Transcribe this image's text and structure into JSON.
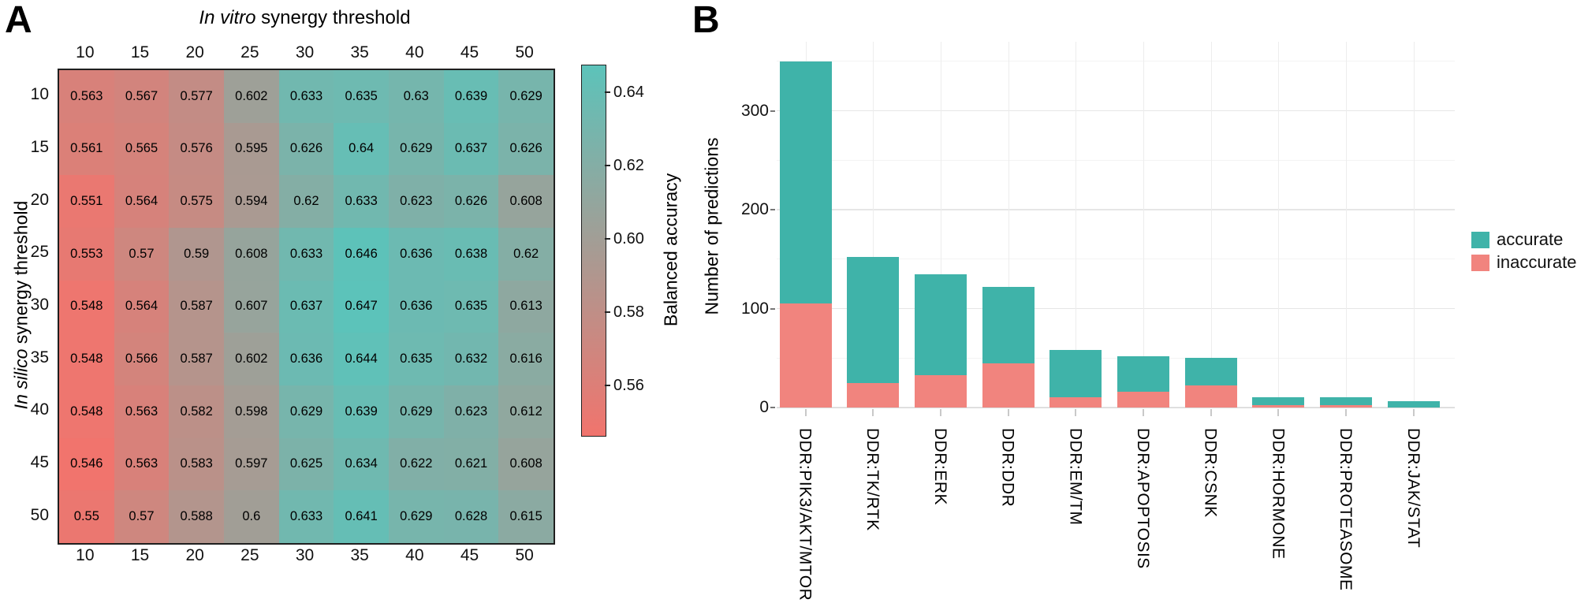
{
  "panel_a": {
    "label": "A"
  },
  "panel_b": {
    "label": "B"
  },
  "chart_data": [
    {
      "type": "heatmap",
      "panel": "A",
      "title_italic": "In vitro",
      "title_rest": " synergy threshold",
      "ylabel_italic": "In silico",
      "ylabel_rest": " synergy threshold",
      "x_categories": [
        "10",
        "15",
        "20",
        "25",
        "30",
        "35",
        "40",
        "45",
        "50"
      ],
      "y_categories": [
        "10",
        "15",
        "20",
        "25",
        "30",
        "35",
        "40",
        "45",
        "50"
      ],
      "values": [
        [
          0.563,
          0.567,
          0.577,
          0.602,
          0.633,
          0.635,
          0.63,
          0.639,
          0.629
        ],
        [
          0.561,
          0.565,
          0.576,
          0.595,
          0.626,
          0.64,
          0.629,
          0.637,
          0.626
        ],
        [
          0.551,
          0.564,
          0.575,
          0.594,
          0.62,
          0.633,
          0.623,
          0.626,
          0.608
        ],
        [
          0.553,
          0.57,
          0.59,
          0.608,
          0.633,
          0.646,
          0.636,
          0.638,
          0.62
        ],
        [
          0.548,
          0.564,
          0.587,
          0.607,
          0.637,
          0.647,
          0.636,
          0.635,
          0.613
        ],
        [
          0.548,
          0.566,
          0.587,
          0.602,
          0.636,
          0.644,
          0.635,
          0.632,
          0.616
        ],
        [
          0.548,
          0.563,
          0.582,
          0.598,
          0.629,
          0.639,
          0.629,
          0.623,
          0.612
        ],
        [
          0.546,
          0.563,
          0.583,
          0.597,
          0.625,
          0.634,
          0.622,
          0.621,
          0.608
        ],
        [
          0.55,
          0.57,
          0.588,
          0.6,
          0.633,
          0.641,
          0.629,
          0.628,
          0.615
        ]
      ],
      "cell_value_range": [
        0.546,
        0.647
      ],
      "colorbar": {
        "label": "Balanced accuracy",
        "tick_values": [
          0.64,
          0.62,
          0.6,
          0.58,
          0.56
        ],
        "tick_labels": [
          "0.64",
          "0.62",
          "0.60",
          "0.58",
          "0.56"
        ],
        "range": [
          0.5465,
          0.6475
        ],
        "low_color": "#F1746D",
        "high_color": "#5CC3BA"
      }
    },
    {
      "type": "bar",
      "panel": "B",
      "stacked": true,
      "ylabel": "Number of predictions",
      "categories": [
        "DDR:PIK3/AKT/MTOR",
        "DDR:TK/RTK",
        "DDR:ERK",
        "DDR:DDR",
        "DDR:EM/TM",
        "DDR:APOPTOSIS",
        "DDR:CSNK",
        "DDR:HORMONE",
        "DDR:PROTEASOME",
        "DDR:JAK/STAT"
      ],
      "series": [
        {
          "name": "accurate",
          "color": "#3FB3A9",
          "values": [
            245,
            127,
            102,
            77,
            48,
            36,
            28,
            8,
            8,
            6
          ]
        },
        {
          "name": "inaccurate",
          "color": "#F1847E",
          "values": [
            105,
            25,
            33,
            45,
            10,
            16,
            22,
            2,
            2,
            0
          ]
        }
      ],
      "stack_order_bottom_to_top": [
        "inaccurate",
        "accurate"
      ],
      "ylim": [
        0,
        370
      ],
      "yticks": [
        0,
        100,
        200,
        300
      ],
      "ytick_labels": [
        "0",
        "100",
        "200",
        "300"
      ],
      "minor_gridlines": [
        50,
        150,
        250,
        350
      ],
      "grid": true,
      "legend_position": "right"
    }
  ]
}
